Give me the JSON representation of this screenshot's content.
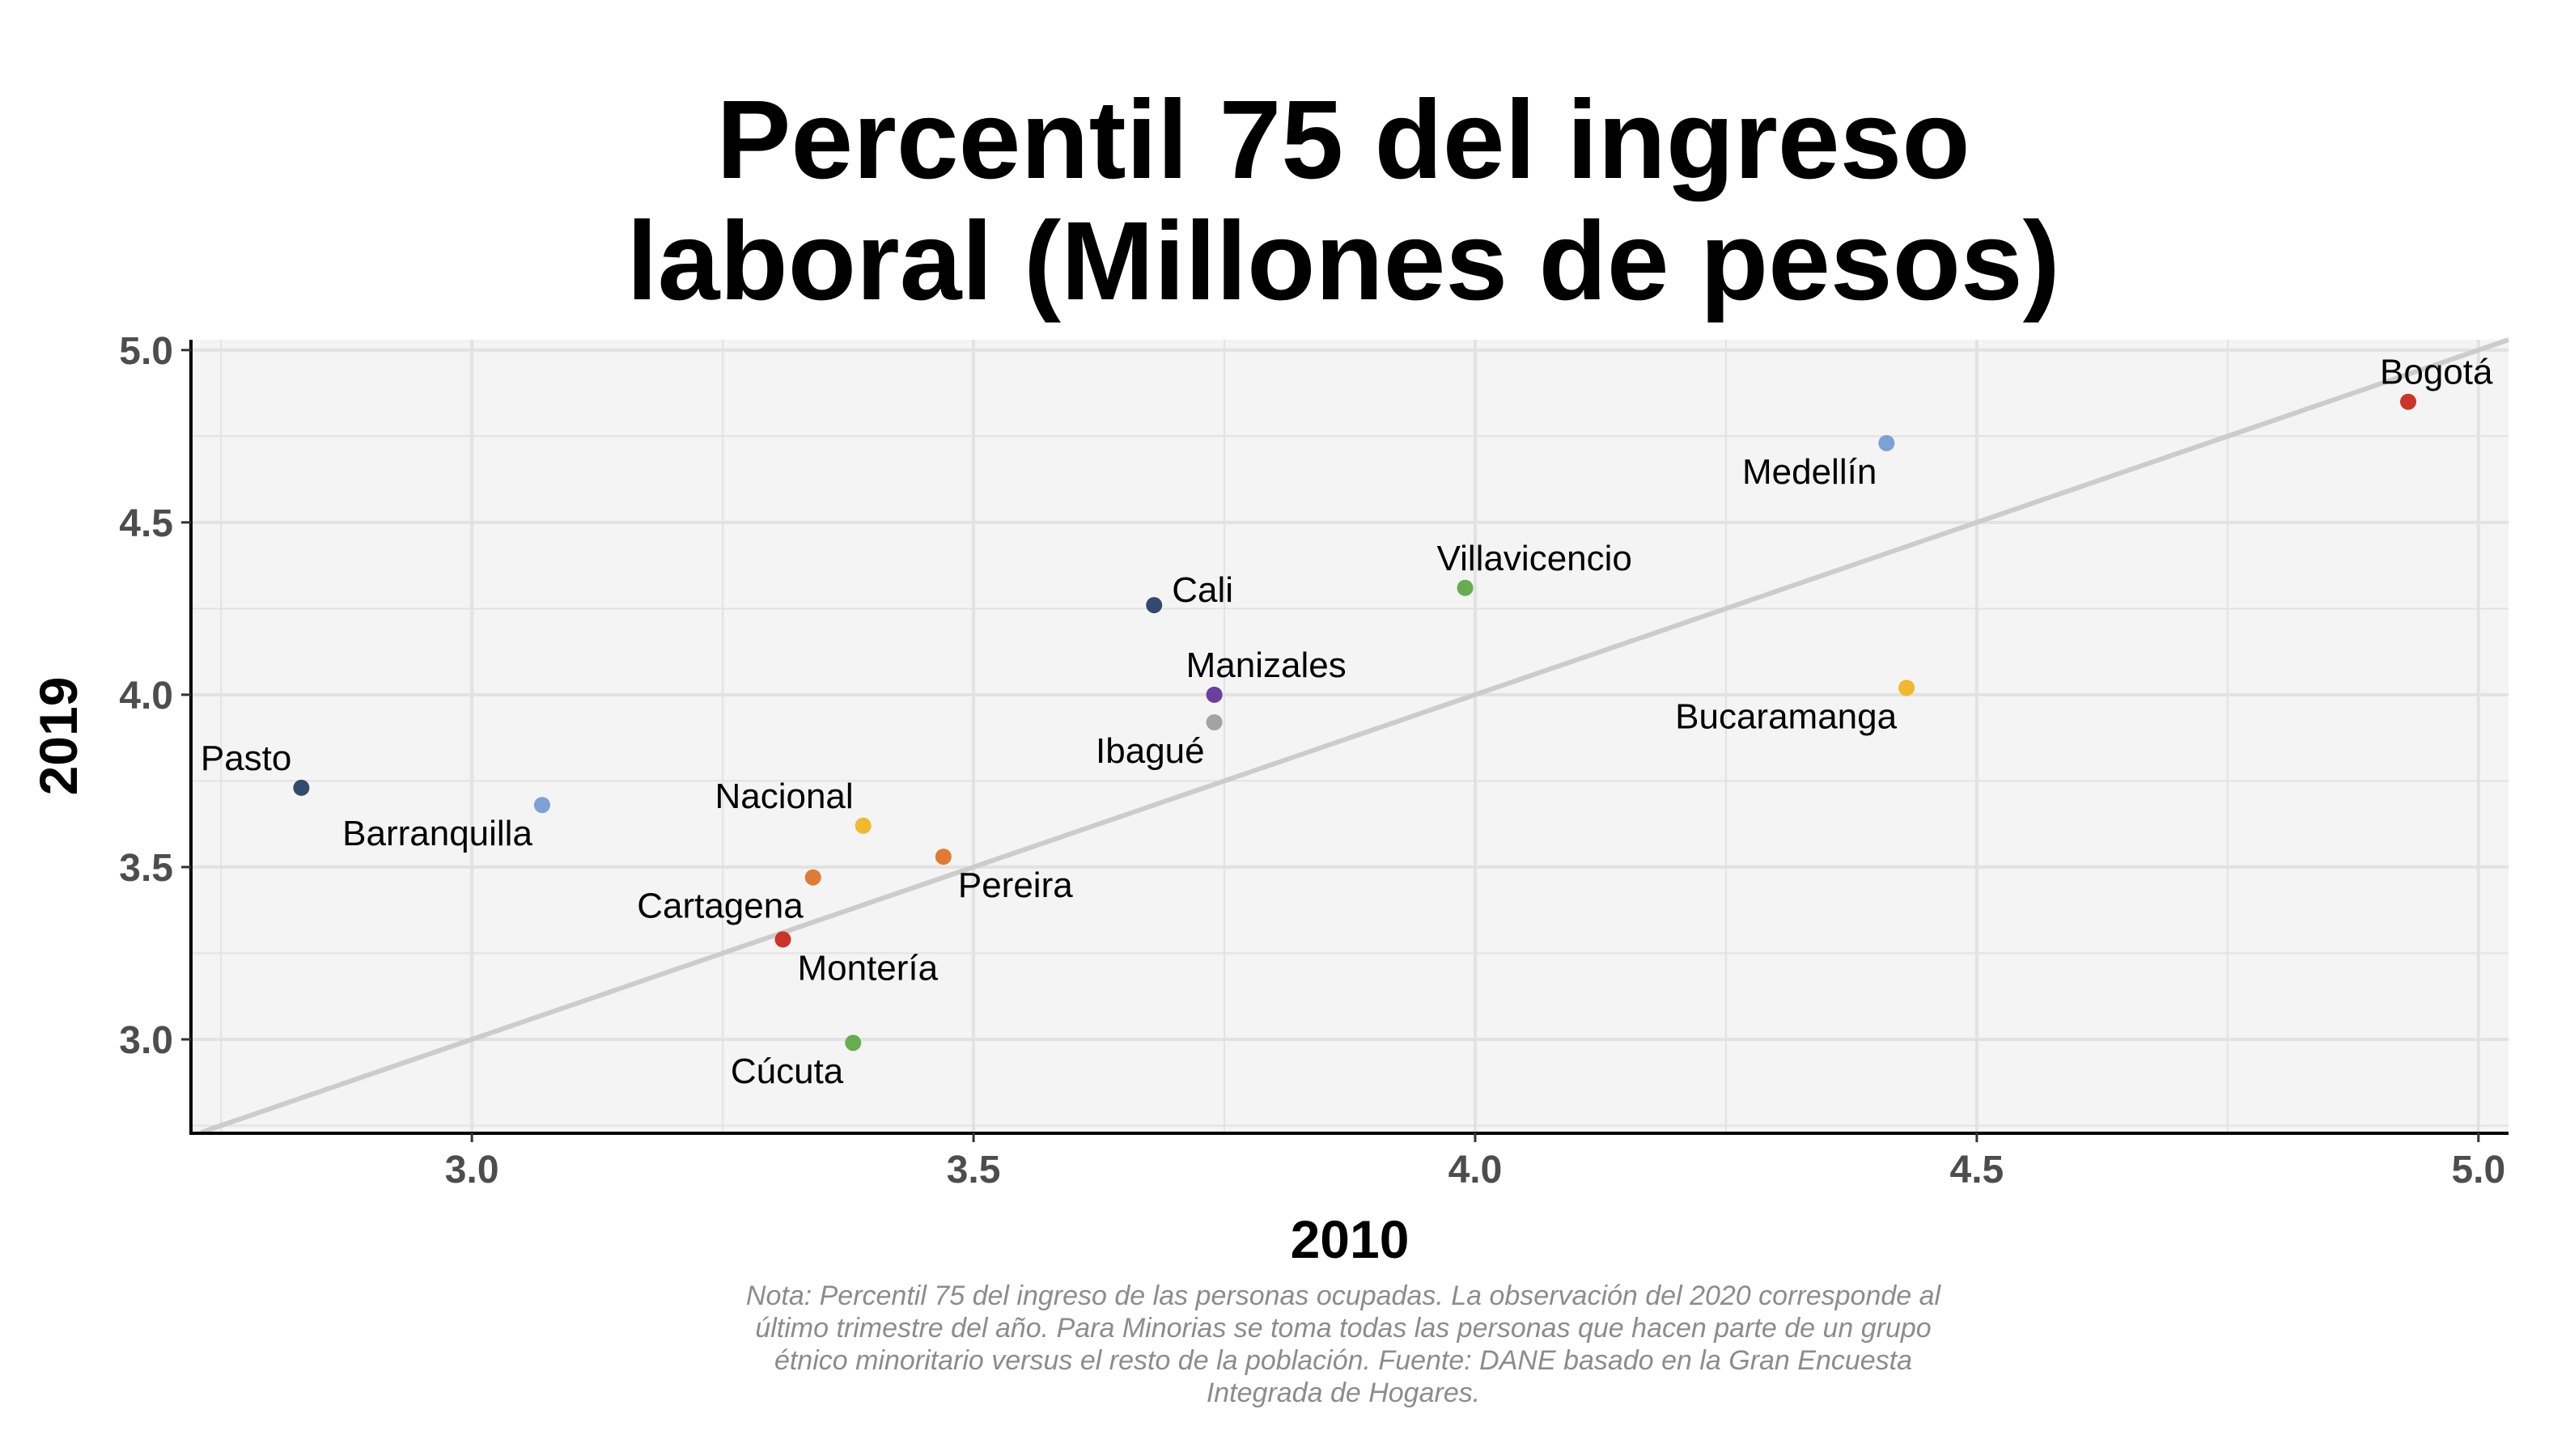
{
  "chart_data": {
    "type": "scatter",
    "title_lines": [
      "Percentil 75 del ingreso",
      "laboral (Millones de pesos)"
    ],
    "xlabel": "2010",
    "ylabel": "2019",
    "xlim": [
      2.72,
      5.03
    ],
    "ylim": [
      2.73,
      5.03
    ],
    "x_ticks": [
      3.0,
      3.5,
      4.0,
      4.5,
      5.0
    ],
    "x_tick_labels": [
      "3.0",
      "3.5",
      "4.0",
      "4.5",
      "5.0"
    ],
    "y_ticks": [
      3.0,
      3.5,
      4.0,
      4.5,
      5.0
    ],
    "y_tick_labels": [
      "3.0",
      "3.5",
      "4.0",
      "4.5",
      "5.0"
    ],
    "grid": true,
    "reference_line": "y = x",
    "points": [
      {
        "label": "Bogotá",
        "x": 4.93,
        "y": 4.85,
        "color": "#cc3329",
        "label_pos": "above-right"
      },
      {
        "label": "Medellín",
        "x": 4.41,
        "y": 4.73,
        "color": "#7ba1d6",
        "label_pos": "below-left"
      },
      {
        "label": "Villavicencio",
        "x": 3.99,
        "y": 4.31,
        "color": "#66ad4f",
        "label_pos": "above-right"
      },
      {
        "label": "Cali",
        "x": 3.68,
        "y": 4.26,
        "color": "#34496e",
        "label_pos": "right"
      },
      {
        "label": "Manizales",
        "x": 3.74,
        "y": 4.0,
        "color": "#6a3fa0",
        "label_pos": "above-right"
      },
      {
        "label": "Bucaramanga",
        "x": 4.43,
        "y": 4.02,
        "color": "#f0b92e",
        "label_pos": "below-left"
      },
      {
        "label": "Ibagué",
        "x": 3.74,
        "y": 3.92,
        "color": "#a3a3a3",
        "label_pos": "below-left"
      },
      {
        "label": "Pasto",
        "x": 2.83,
        "y": 3.73,
        "color": "#34496e",
        "label_pos": "above-left"
      },
      {
        "label": "Barranquilla",
        "x": 3.07,
        "y": 3.68,
        "color": "#7ba1d6",
        "label_pos": "below-left"
      },
      {
        "label": "Nacional",
        "x": 3.39,
        "y": 3.62,
        "color": "#f0b92e",
        "label_pos": "above-left"
      },
      {
        "label": "Pereira",
        "x": 3.47,
        "y": 3.53,
        "color": "#e07b36",
        "label_pos": "below-right"
      },
      {
        "label": "Cartagena",
        "x": 3.34,
        "y": 3.47,
        "color": "#e07b36",
        "label_pos": "below-left"
      },
      {
        "label": "Montería",
        "x": 3.31,
        "y": 3.29,
        "color": "#cc3329",
        "label_pos": "below-right"
      },
      {
        "label": "Cúcuta",
        "x": 3.38,
        "y": 2.99,
        "color": "#66ad4f",
        "label_pos": "below-left"
      }
    ],
    "note_lines": [
      "Nota: Percentil 75 del ingreso de las personas ocupadas. La observación del 2020 corresponde al",
      "último trimestre del año. Para Minorias se toma todas las personas que hacen parte de un grupo",
      "étnico minoritario versus el resto de la población. Fuente: DANE basado en la Gran Encuesta",
      "Integrada de Hogares."
    ]
  }
}
